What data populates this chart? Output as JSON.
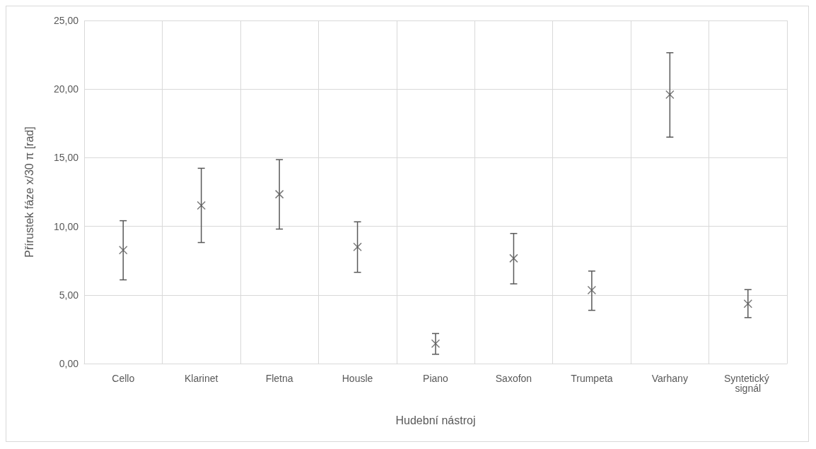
{
  "chart_data": {
    "type": "scatter",
    "xlabel": "Hudební nástroj",
    "ylabel": "Přírustek fáze x/30 π [rad]",
    "categories": [
      "Cello",
      "Klarinet",
      "Fletna",
      "Housle",
      "Piano",
      "Saxofon",
      "Trumpeta",
      "Varhany",
      "Syntetický signál"
    ],
    "series": [
      {
        "color": "#595959",
        "values": [
          8.27,
          11.52,
          12.34,
          8.5,
          1.45,
          7.67,
          5.35,
          19.6,
          4.36
        ],
        "errors": [
          [
            6.1,
            10.41
          ],
          [
            8.82,
            14.23
          ],
          [
            9.8,
            14.86
          ],
          [
            6.65,
            10.33
          ],
          [
            0.68,
            2.19
          ],
          [
            5.81,
            9.48
          ],
          [
            3.88,
            6.74
          ],
          [
            16.5,
            22.65
          ],
          [
            3.35,
            5.39
          ]
        ]
      }
    ],
    "ylim": [
      0,
      25
    ],
    "yticks": [
      {
        "value": 0,
        "label": "0,00"
      },
      {
        "value": 5,
        "label": "5,00"
      },
      {
        "value": 10,
        "label": "10,00"
      },
      {
        "value": 15,
        "label": "15,00"
      },
      {
        "value": 20,
        "label": "20,00"
      },
      {
        "value": 25,
        "label": "25,00"
      }
    ],
    "grid": true,
    "marker": "cross"
  }
}
